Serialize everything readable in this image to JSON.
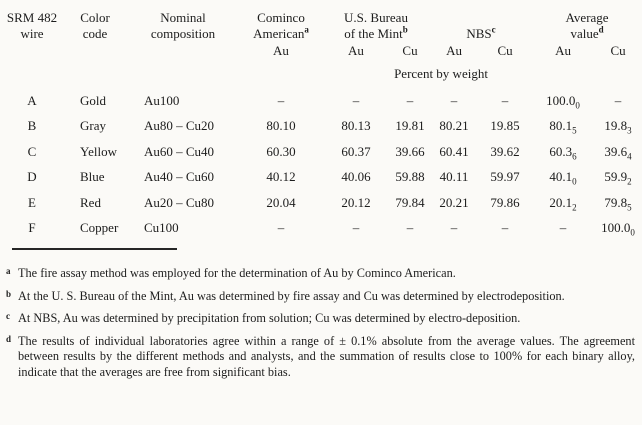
{
  "page": {
    "background": "#fbfaf7",
    "ink": "#1d1d1d"
  },
  "table": {
    "groups": [
      {
        "id": "wire",
        "lines": [
          "SRM 482",
          "wire"
        ],
        "sup": ""
      },
      {
        "id": "color",
        "lines": [
          "Color",
          "code"
        ],
        "sup": ""
      },
      {
        "id": "nominal",
        "lines": [
          "Nominal",
          "composition"
        ],
        "sup": ""
      },
      {
        "id": "cominco",
        "lines": [
          "Cominco",
          "American"
        ],
        "sup": "a",
        "subcols": [
          "Au"
        ]
      },
      {
        "id": "mint",
        "lines": [
          "U.S. Bureau",
          "of the Mint"
        ],
        "sup": "b",
        "subcols": [
          "Au",
          "Cu"
        ]
      },
      {
        "id": "nbs",
        "lines": [
          "NBS"
        ],
        "sup": "c",
        "subcols": [
          "Au",
          "Cu"
        ]
      },
      {
        "id": "average",
        "lines": [
          "Average",
          "value"
        ],
        "sup": "d",
        "subcols": [
          "Au",
          "Cu"
        ]
      }
    ],
    "units_caption": "Percent by weight",
    "rows": [
      {
        "wire": "A",
        "color": "Gold",
        "composition": "Au100",
        "values": [
          {
            "t": "–"
          },
          {
            "t": "–"
          },
          {
            "t": "–"
          },
          {
            "t": "–"
          },
          {
            "t": "–"
          },
          {
            "t": "100.0",
            "s": "0"
          },
          {
            "t": "–"
          }
        ]
      },
      {
        "wire": "B",
        "color": "Gray",
        "composition": "Au80 – Cu20",
        "values": [
          {
            "t": "80.10"
          },
          {
            "t": "80.13"
          },
          {
            "t": "19.81"
          },
          {
            "t": "80.21"
          },
          {
            "t": "19.85"
          },
          {
            "t": "80.1",
            "s": "5"
          },
          {
            "t": "19.8",
            "s": "3"
          }
        ]
      },
      {
        "wire": "C",
        "color": "Yellow",
        "composition": "Au60 – Cu40",
        "values": [
          {
            "t": "60.30"
          },
          {
            "t": "60.37"
          },
          {
            "t": "39.66"
          },
          {
            "t": "60.41"
          },
          {
            "t": "39.62"
          },
          {
            "t": "60.3",
            "s": "6"
          },
          {
            "t": "39.6",
            "s": "4"
          }
        ]
      },
      {
        "wire": "D",
        "color": "Blue",
        "composition": "Au40 – Cu60",
        "values": [
          {
            "t": "40.12"
          },
          {
            "t": "40.06"
          },
          {
            "t": "59.88"
          },
          {
            "t": "40.11"
          },
          {
            "t": "59.97"
          },
          {
            "t": "40.1",
            "s": "0"
          },
          {
            "t": "59.9",
            "s": "2"
          }
        ]
      },
      {
        "wire": "E",
        "color": "Red",
        "composition": "Au20 – Cu80",
        "values": [
          {
            "t": "20.04"
          },
          {
            "t": "20.12"
          },
          {
            "t": "79.84"
          },
          {
            "t": "20.21"
          },
          {
            "t": "79.86"
          },
          {
            "t": "20.1",
            "s": "2"
          },
          {
            "t": "79.8",
            "s": "5"
          }
        ]
      },
      {
        "wire": "F",
        "color": "Copper",
        "composition": "Cu100",
        "values": [
          {
            "t": "–"
          },
          {
            "t": "–"
          },
          {
            "t": "–"
          },
          {
            "t": "–"
          },
          {
            "t": "–"
          },
          {
            "t": "–"
          },
          {
            "t": "100.0",
            "s": "0"
          }
        ]
      }
    ]
  },
  "footnotes": [
    {
      "sup": "a",
      "text": "The fire assay method was employed for the determination of Au by Cominco American."
    },
    {
      "sup": "b",
      "text": "At the U. S. Bureau of the Mint, Au was determined by fire assay and Cu was determined by electrodeposition."
    },
    {
      "sup": "c",
      "text": "At NBS, Au was determined by precipitation from solution; Cu was determined by electro-deposition."
    },
    {
      "sup": "d",
      "text": "The results of individual laboratories agree within a range of  ± 0.1% absolute from the average values. The agreement between results by the different methods and analysts, and the summation of results close to 100% for each binary alloy, indicate that the averages are free from significant bias."
    }
  ]
}
